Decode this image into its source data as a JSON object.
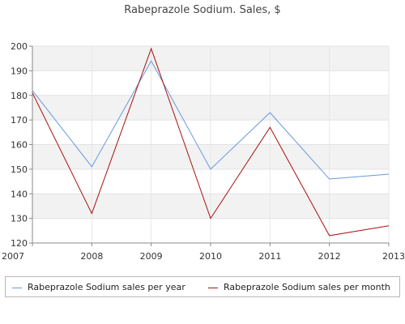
{
  "chart_data": {
    "type": "line",
    "title": "Rabeprazole Sodium. Sales, $",
    "x": [
      "2007",
      "2008",
      "2009",
      "2010",
      "2011",
      "2012",
      "2013"
    ],
    "y_ticks": [
      "120",
      "130",
      "140",
      "150",
      "160",
      "170",
      "180",
      "190",
      "200"
    ],
    "ylim": [
      120,
      200
    ],
    "grid": "horizontal bands",
    "legend_position": "bottom",
    "series": [
      {
        "name": "Rabeprazole Sodium sales per year",
        "color": "#6699dd",
        "values": [
          182,
          151,
          194,
          150,
          173,
          146,
          148
        ]
      },
      {
        "name": "Rabeprazole Sodium sales per month",
        "color": "#aa1111",
        "values": [
          181,
          132,
          199,
          130,
          167,
          123,
          127
        ]
      }
    ]
  }
}
